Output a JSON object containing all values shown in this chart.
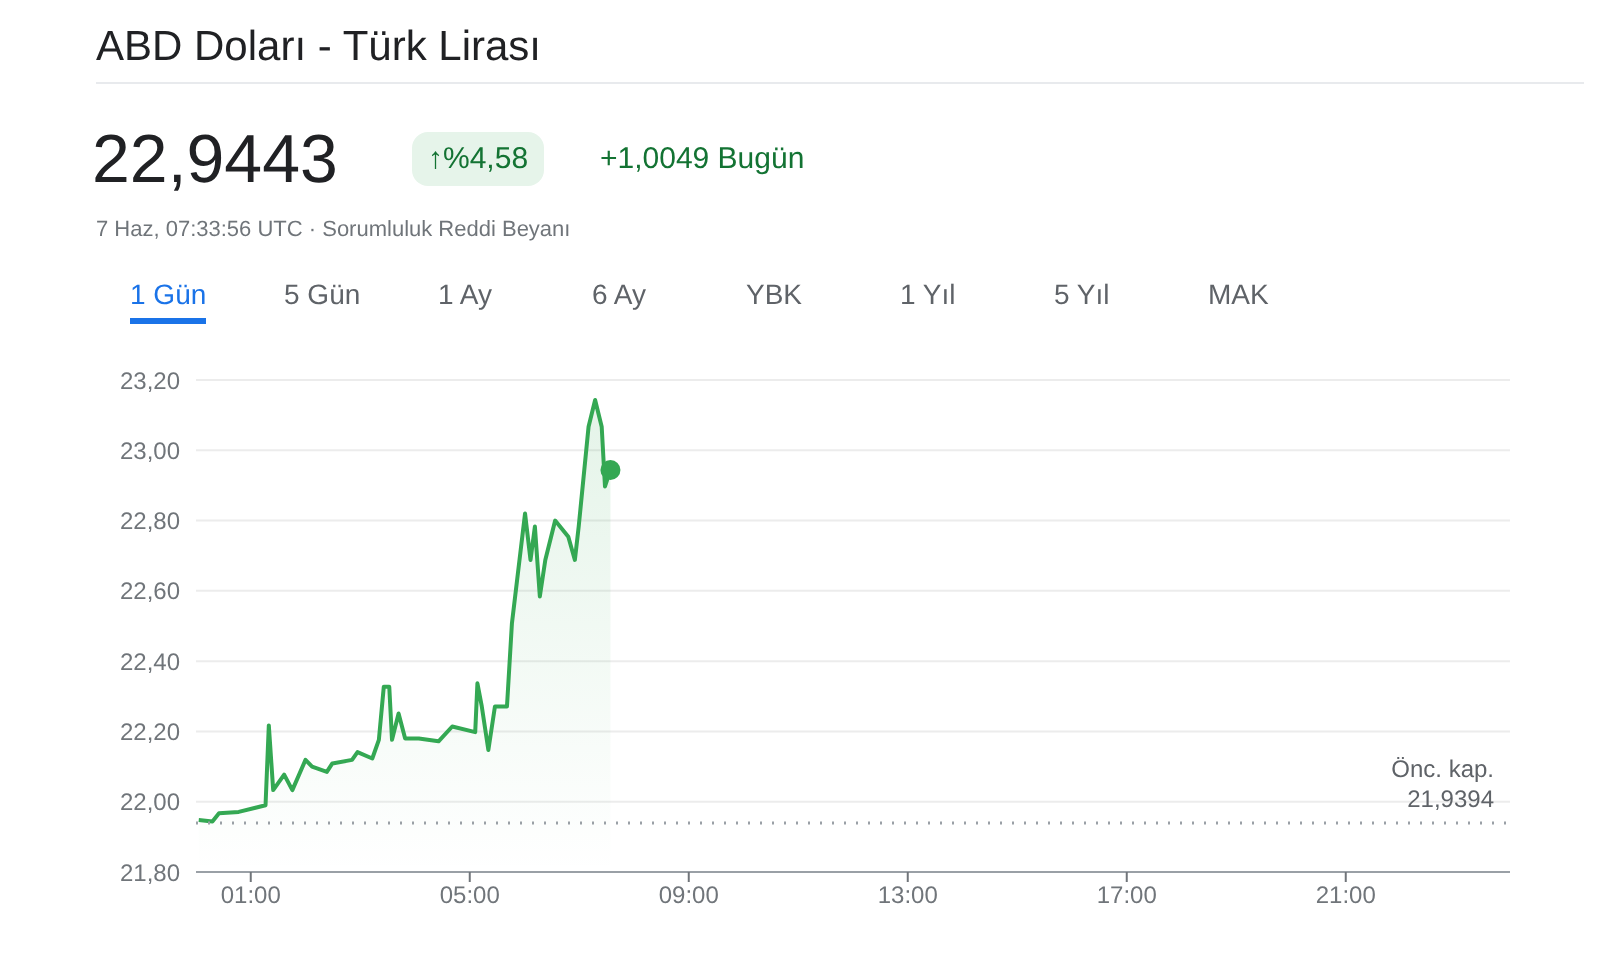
{
  "chart_data": {
    "type": "area",
    "title": "ABD Doları - Türk Lirası",
    "annotations": [
      "22,9443",
      "↑%4,58",
      "+1,0049 Bugün",
      "7 Haz, 07:33:56 UTC · Sorumluluk Reddi Beyanı",
      "1 Gün",
      "5 Gün",
      "1 Ay",
      "6 Ay",
      "YBK",
      "1 Yıl",
      "5 Yıl",
      "MAK"
    ],
    "x": [
      0.05,
      0.3,
      0.42,
      0.78,
      1.27,
      1.33,
      1.41,
      1.61,
      1.76,
      2.0,
      2.12,
      2.39,
      2.49,
      2.85,
      2.95,
      3.22,
      3.34,
      3.43,
      3.53,
      3.58,
      3.7,
      3.82,
      4.07,
      4.43,
      4.68,
      5.1,
      5.14,
      5.22,
      5.34,
      5.46,
      5.68,
      5.77,
      6.01,
      6.11,
      6.19,
      6.28,
      6.38,
      6.56,
      6.8,
      6.92,
      6.99,
      7.17,
      7.29,
      7.41,
      7.47,
      7.57
    ],
    "series": [
      {
        "color": "#34a853",
        "values": [
          21.948,
          21.944,
          21.967,
          21.971,
          21.99,
          22.217,
          22.033,
          22.077,
          22.033,
          22.119,
          22.1,
          22.085,
          22.109,
          22.119,
          22.141,
          22.123,
          22.176,
          22.327,
          22.327,
          22.176,
          22.251,
          22.18,
          22.18,
          22.172,
          22.214,
          22.198,
          22.337,
          22.271,
          22.147,
          22.271,
          22.271,
          22.507,
          22.82,
          22.688,
          22.783,
          22.584,
          22.688,
          22.8,
          22.754,
          22.688,
          22.783,
          23.067,
          23.143,
          23.067,
          22.897,
          22.944
        ]
      }
    ],
    "xlim": [
      0,
      24
    ],
    "xticks": [
      {
        "value": 1,
        "label": "01:00"
      },
      {
        "value": 5,
        "label": "05:00"
      },
      {
        "value": 9,
        "label": "09:00"
      },
      {
        "value": 13,
        "label": "13:00"
      },
      {
        "value": 17,
        "label": "17:00"
      },
      {
        "value": 21,
        "label": "21:00"
      }
    ],
    "ylim": [
      21.8,
      23.2
    ],
    "yticks": [
      {
        "value": 21.8,
        "label": "21,80"
      },
      {
        "value": 22,
        "label": "22,00"
      },
      {
        "value": 22.2,
        "label": "22,20"
      },
      {
        "value": 22.4,
        "label": "22,40"
      },
      {
        "value": 22.6,
        "label": "22,60"
      },
      {
        "value": 22.8,
        "label": "22,80"
      },
      {
        "value": 23,
        "label": "23,00"
      },
      {
        "value": 23.2,
        "label": "23,20"
      }
    ],
    "ref_lines": [
      {
        "axis": "y",
        "value": 21.9394,
        "label": "Önc. kap.\n21,9394",
        "color": "#9aa0a6",
        "line_style": "dotted"
      }
    ],
    "grid": "y"
  }
}
